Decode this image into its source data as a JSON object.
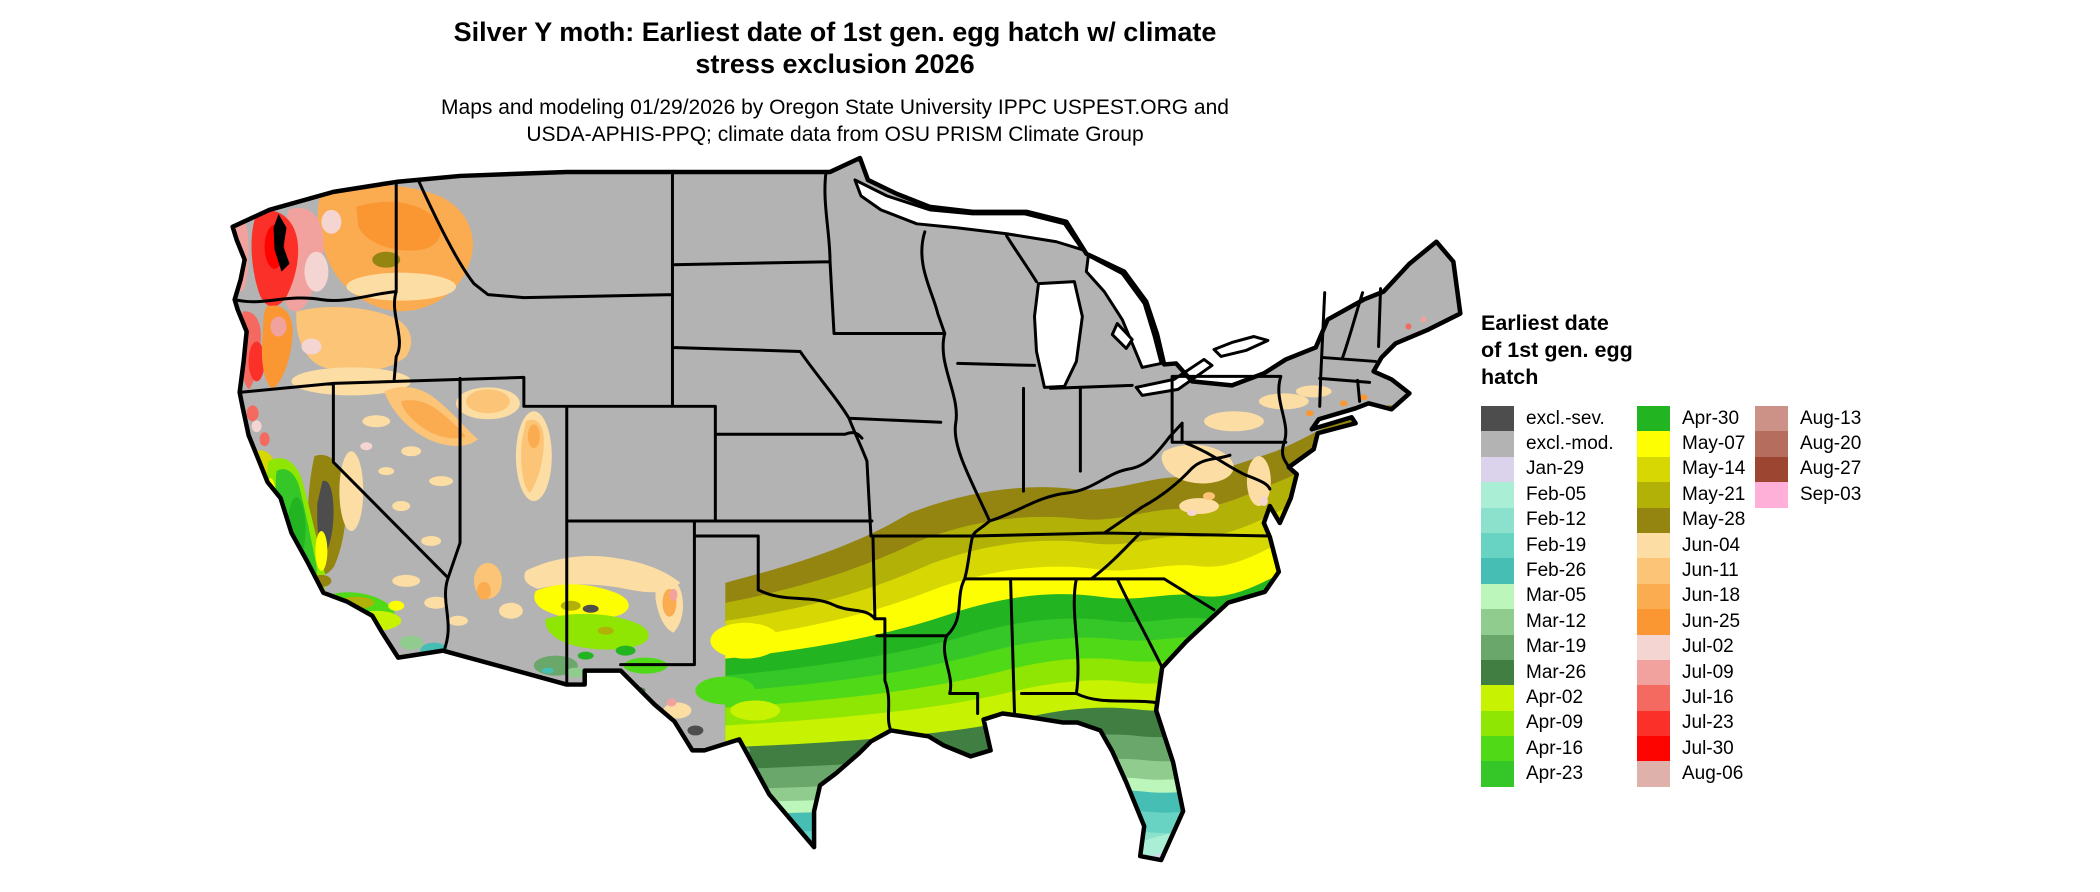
{
  "header": {
    "title_lines": [
      "Silver Y moth: Earliest date of 1st gen. egg hatch w/ climate",
      "stress exclusion 2026"
    ],
    "subtitle_lines": [
      "Maps and modeling 01/29/2026 by Oregon State University IPPC USPEST.ORG and",
      "USDA-APHIS-PPQ; climate data from OSU PRISM Climate Group"
    ]
  },
  "legend": {
    "title_lines": [
      "Earliest date",
      "of 1st gen. egg",
      "hatch"
    ],
    "columns": [
      {
        "entries": [
          {
            "label": "excl.-sev.",
            "key": "excl_sev"
          },
          {
            "label": "excl.-mod.",
            "key": "excl_mod"
          },
          {
            "label": "Jan-29",
            "key": "jan29"
          },
          {
            "label": "Feb-05",
            "key": "feb05"
          },
          {
            "label": "Feb-12",
            "key": "feb12"
          },
          {
            "label": "Feb-19",
            "key": "feb19"
          },
          {
            "label": "Feb-26",
            "key": "feb26"
          },
          {
            "label": "Mar-05",
            "key": "mar05"
          },
          {
            "label": "Mar-12",
            "key": "mar12"
          },
          {
            "label": "Mar-19",
            "key": "mar19"
          },
          {
            "label": "Mar-26",
            "key": "mar26"
          },
          {
            "label": "Apr-02",
            "key": "apr02"
          },
          {
            "label": "Apr-09",
            "key": "apr09"
          },
          {
            "label": "Apr-16",
            "key": "apr16"
          },
          {
            "label": "Apr-23",
            "key": "apr23"
          }
        ]
      },
      {
        "entries": [
          {
            "label": "Apr-30",
            "key": "apr30"
          },
          {
            "label": "May-07",
            "key": "may07"
          },
          {
            "label": "May-14",
            "key": "may14"
          },
          {
            "label": "May-21",
            "key": "may21"
          },
          {
            "label": "May-28",
            "key": "may28"
          },
          {
            "label": "Jun-04",
            "key": "jun04"
          },
          {
            "label": "Jun-11",
            "key": "jun11"
          },
          {
            "label": "Jun-18",
            "key": "jun18"
          },
          {
            "label": "Jun-25",
            "key": "jun25"
          },
          {
            "label": "Jul-02",
            "key": "jul02"
          },
          {
            "label": "Jul-09",
            "key": "jul09"
          },
          {
            "label": "Jul-16",
            "key": "jul16"
          },
          {
            "label": "Jul-23",
            "key": "jul23"
          },
          {
            "label": "Jul-30",
            "key": "jul30"
          },
          {
            "label": "Aug-06",
            "key": "aug06"
          }
        ]
      },
      {
        "entries": [
          {
            "label": "Aug-13",
            "key": "aug13"
          },
          {
            "label": "Aug-20",
            "key": "aug20"
          },
          {
            "label": "Aug-27",
            "key": "aug27"
          },
          {
            "label": "Sep-03",
            "key": "sep03"
          }
        ]
      }
    ]
  },
  "palette": {
    "excl_sev": "#4d4d4d",
    "excl_mod": "#b3b3b3",
    "jan29": "#dad3eb",
    "feb05": "#aaeed5",
    "feb12": "#8ce1cd",
    "feb19": "#68d2c3",
    "feb26": "#46beb3",
    "mar05": "#bdf6ba",
    "mar12": "#8fcc8d",
    "mar19": "#69a76a",
    "mar26": "#407e41",
    "apr02": "#c7f303",
    "apr09": "#8fe603",
    "apr16": "#50d916",
    "apr23": "#34c727",
    "apr30": "#23b521",
    "may07": "#fefe02",
    "may14": "#d6d703",
    "may21": "#b2b108",
    "may28": "#948410",
    "jun04": "#fcdda3",
    "jun11": "#fcc477",
    "jun18": "#fbab50",
    "jun25": "#fa9733",
    "jul02": "#f4d5d2",
    "jul09": "#f2a29e",
    "jul16": "#f46960",
    "jul23": "#fa3029",
    "jul30": "#fe0401",
    "aug06": "#deb2aa",
    "aug13": "#cc9287",
    "aug20": "#b56d5d",
    "aug27": "#9c4632",
    "sep03": "#feb0d9",
    "water": "#ffffff",
    "ink": "#000000"
  },
  "map": {
    "background": "#ffffff",
    "border_color": "#000000"
  }
}
